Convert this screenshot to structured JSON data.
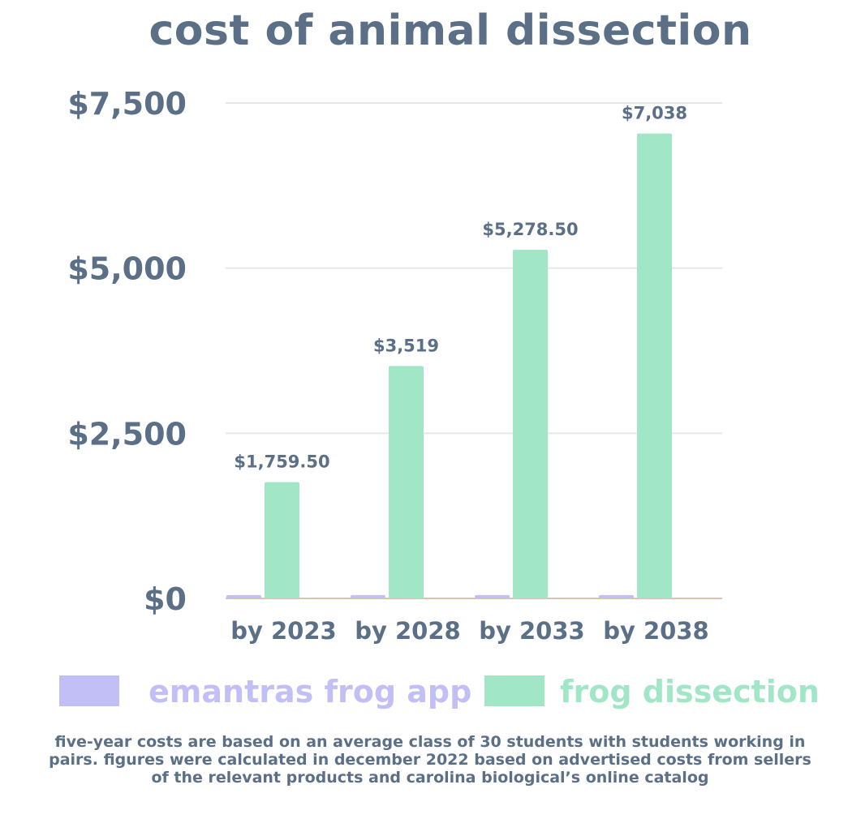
{
  "chart_data": {
    "type": "bar",
    "title": "cost of animal dissection",
    "categories": [
      "by 2023",
      "by 2028",
      "by 2033",
      "by 2038"
    ],
    "series": [
      {
        "name": "emantras frog app",
        "color": "#c2bff7",
        "values": [
          50,
          50,
          50,
          50
        ]
      },
      {
        "name": "frog dissection",
        "color": "#a2e6c8",
        "values": [
          1759.5,
          3519,
          5278.5,
          7038
        ],
        "data_labels": [
          "$1,759.50",
          "$3,519",
          "$5,278.50",
          "$7,038"
        ]
      }
    ],
    "y_ticks": [
      0,
      2500,
      5000,
      7500
    ],
    "y_tick_labels": [
      "$0",
      "$2,500",
      "$5,000",
      "$7,500"
    ],
    "ylim": [
      0,
      7500
    ],
    "xlabel": "",
    "ylabel": "",
    "grid": true,
    "legend_position": "bottom",
    "gridline_color": "#e6e6e6",
    "baseline_color": "#d8c4b0"
  },
  "footnote": "five-year costs are based on an average class of 30 students with students working in pairs. figures were calculated in december 2022 based on advertised costs from sellers of the relevant products and carolina biological’s online catalog"
}
